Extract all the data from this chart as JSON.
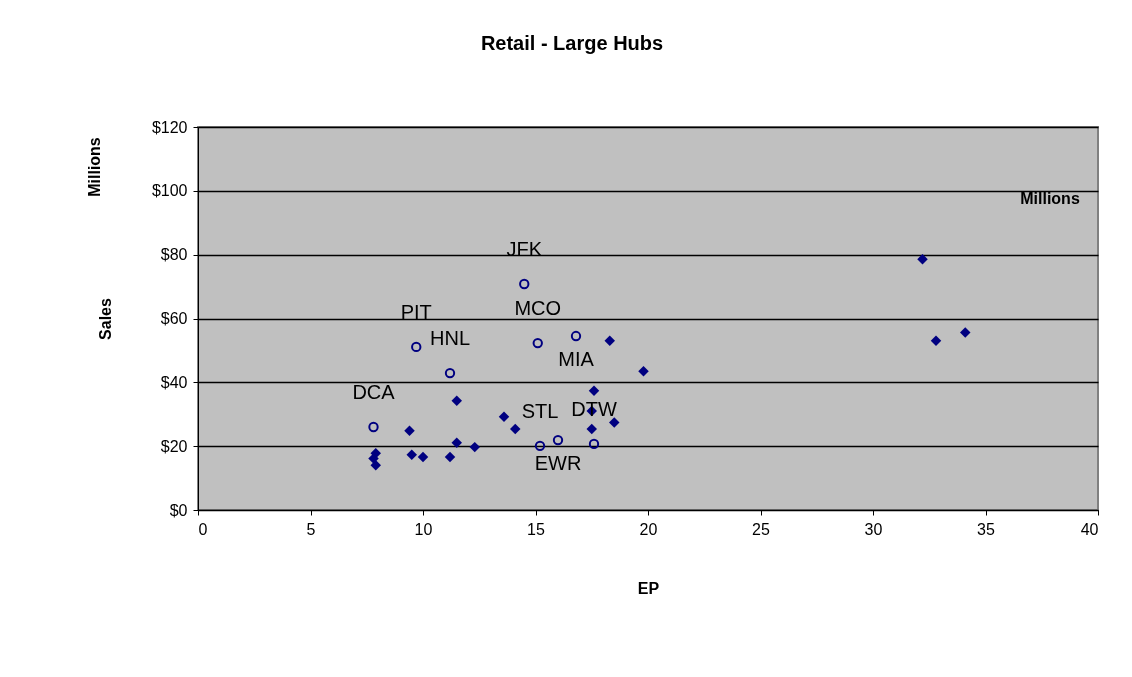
{
  "chart_data": {
    "type": "scatter",
    "title": "Retail - Large Hubs",
    "xlabel": "EP",
    "ylabel": "Sales",
    "xlim": [
      0,
      40
    ],
    "xticks": [
      0,
      5,
      10,
      15,
      20,
      25,
      30,
      35,
      40
    ],
    "ylim": [
      0,
      120
    ],
    "yticks": [
      {
        "value": 0,
        "label": "$0"
      },
      {
        "value": 20,
        "label": "$20"
      },
      {
        "value": 40,
        "label": "$40"
      },
      {
        "value": 60,
        "label": "$60"
      },
      {
        "value": 80,
        "label": "$80"
      },
      {
        "value": 100,
        "label": "$100"
      },
      {
        "value": 120,
        "label": "$120"
      }
    ],
    "grid": "y",
    "series": [
      {
        "color": "#000080",
        "marker": "diamond",
        "x": [
          18.3,
          19.8,
          17.6,
          11.5,
          13.6,
          17.5,
          14.1,
          17.5,
          18.5,
          9.4,
          11.5,
          12.3,
          9.5,
          10.0,
          11.2,
          7.9,
          7.8,
          7.9,
          32.2,
          32.8,
          34.1
        ],
        "values": [
          53.0,
          43.5,
          37.4,
          34.2,
          29.2,
          31.0,
          25.4,
          25.4,
          27.4,
          24.8,
          21.1,
          19.7,
          17.3,
          16.6,
          16.6,
          17.8,
          16.1,
          14.0,
          78.6,
          53.0,
          55.6
        ]
      },
      {
        "color": "#000080",
        "marker": "circle",
        "x": [
          14.5,
          9.7,
          11.2,
          7.8,
          15.1,
          16.8,
          15.2,
          16.0,
          17.6
        ],
        "values": [
          70.8,
          51.1,
          42.9,
          26.0,
          52.3,
          54.5,
          20.1,
          21.9,
          20.7
        ]
      }
    ],
    "annotations": [
      "Millions",
      "Millions",
      {
        "text": "JFK",
        "x": 14.5,
        "y": 70.8
      },
      {
        "text": "PIT",
        "x": 9.7,
        "y": 51.1
      },
      {
        "text": "HNL",
        "x": 11.2,
        "y": 42.9
      },
      {
        "text": "DCA",
        "x": 7.8,
        "y": 26.0
      },
      {
        "text": "MCO",
        "x": 15.1,
        "y": 52.3
      },
      {
        "text": "MIA",
        "x": 16.8,
        "y": 54.5
      },
      {
        "text": "STL",
        "x": 15.2,
        "y": 20.1
      },
      {
        "text": "EWR",
        "x": 16.0,
        "y": 21.9
      },
      {
        "text": "DTW",
        "x": 17.6,
        "y": 20.7
      }
    ]
  }
}
